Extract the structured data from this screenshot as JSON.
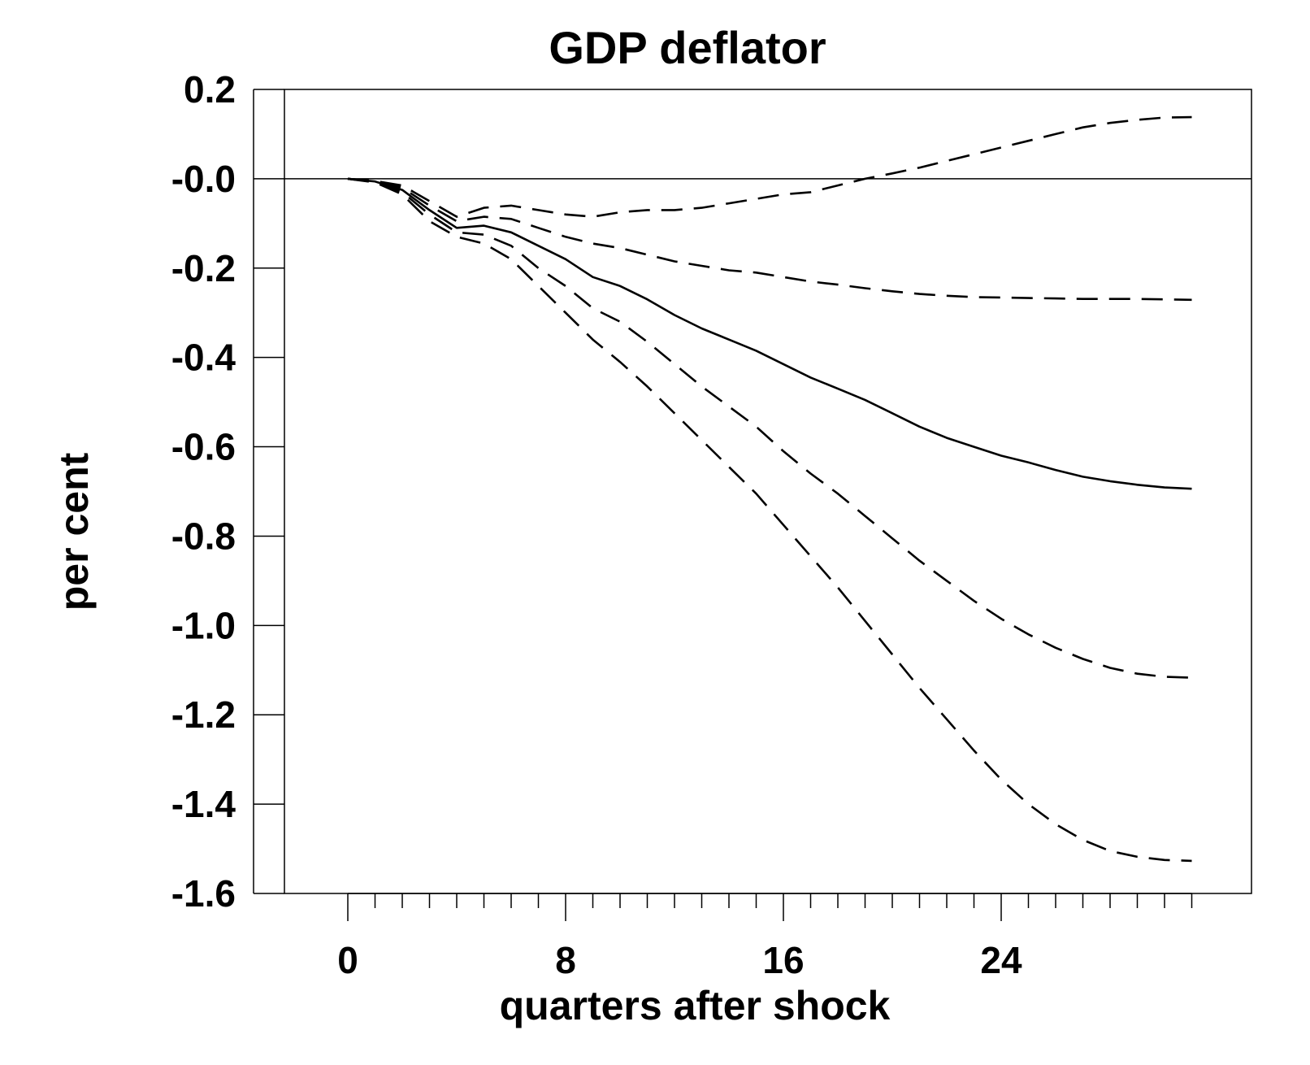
{
  "chart_data": {
    "type": "line",
    "title": "GDP deflator",
    "xlabel": "quarters after shock",
    "ylabel": "per cent",
    "xlim": [
      -3.5,
      32
    ],
    "ylim": [
      -1.6,
      0.2
    ],
    "x_ticks": [
      0,
      8,
      16,
      24
    ],
    "x_tick_labels": [
      "0",
      "8",
      "16",
      "24"
    ],
    "x_minor_ticks": [
      0,
      1,
      2,
      3,
      4,
      5,
      6,
      7,
      8,
      9,
      10,
      11,
      12,
      13,
      14,
      15,
      16,
      17,
      18,
      19,
      20,
      21,
      22,
      23,
      24,
      25,
      26,
      27,
      28,
      29,
      30,
      31
    ],
    "y_ticks": [
      0.2,
      0.0,
      -0.2,
      -0.4,
      -0.6,
      -0.8,
      -1.0,
      -1.2,
      -1.4,
      -1.6
    ],
    "y_tick_labels": [
      "0.2",
      "-0.0",
      "-0.2",
      "-0.4",
      "-0.6",
      "-0.8",
      "-1.0",
      "-1.2",
      "-1.4",
      "-1.6"
    ],
    "zero_line": true,
    "grid": false,
    "legend": "none",
    "x": [
      0,
      1,
      2,
      3,
      4,
      5,
      6,
      7,
      8,
      9,
      10,
      11,
      12,
      13,
      14,
      15,
      16,
      17,
      18,
      19,
      20,
      21,
      22,
      23,
      24,
      25,
      26,
      27,
      28,
      29,
      30,
      31
    ],
    "series": [
      {
        "style": "dashed",
        "values": [
          0.0,
          -0.005,
          -0.015,
          -0.05,
          -0.085,
          -0.065,
          -0.06,
          -0.07,
          -0.08,
          -0.085,
          -0.075,
          -0.07,
          -0.07,
          -0.065,
          -0.055,
          -0.045,
          -0.035,
          -0.03,
          -0.015,
          0.0,
          0.012,
          0.025,
          0.04,
          0.055,
          0.07,
          0.085,
          0.1,
          0.115,
          0.125,
          0.132,
          0.137,
          0.138
        ]
      },
      {
        "style": "dashed",
        "values": [
          0.0,
          -0.005,
          -0.02,
          -0.06,
          -0.095,
          -0.085,
          -0.09,
          -0.11,
          -0.13,
          -0.145,
          -0.155,
          -0.17,
          -0.185,
          -0.195,
          -0.205,
          -0.21,
          -0.22,
          -0.23,
          -0.237,
          -0.245,
          -0.252,
          -0.258,
          -0.262,
          -0.265,
          -0.266,
          -0.267,
          -0.268,
          -0.269,
          -0.269,
          -0.269,
          -0.27,
          -0.271
        ]
      },
      {
        "style": "solid",
        "values": [
          0.0,
          -0.006,
          -0.025,
          -0.07,
          -0.11,
          -0.105,
          -0.12,
          -0.15,
          -0.18,
          -0.22,
          -0.24,
          -0.27,
          -0.305,
          -0.335,
          -0.36,
          -0.385,
          -0.415,
          -0.445,
          -0.47,
          -0.495,
          -0.525,
          -0.555,
          -0.58,
          -0.6,
          -0.62,
          -0.635,
          -0.652,
          -0.667,
          -0.677,
          -0.685,
          -0.691,
          -0.694
        ]
      },
      {
        "style": "dashed",
        "values": [
          0.0,
          -0.007,
          -0.03,
          -0.08,
          -0.12,
          -0.125,
          -0.15,
          -0.2,
          -0.24,
          -0.29,
          -0.32,
          -0.365,
          -0.415,
          -0.465,
          -0.51,
          -0.555,
          -0.61,
          -0.66,
          -0.705,
          -0.755,
          -0.805,
          -0.855,
          -0.9,
          -0.945,
          -0.985,
          -1.02,
          -1.05,
          -1.075,
          -1.095,
          -1.108,
          -1.115,
          -1.117
        ]
      },
      {
        "style": "dashed",
        "values": [
          0.0,
          -0.008,
          -0.035,
          -0.095,
          -0.13,
          -0.145,
          -0.18,
          -0.24,
          -0.3,
          -0.36,
          -0.41,
          -0.465,
          -0.525,
          -0.585,
          -0.645,
          -0.705,
          -0.775,
          -0.845,
          -0.915,
          -0.99,
          -1.065,
          -1.14,
          -1.21,
          -1.28,
          -1.345,
          -1.4,
          -1.445,
          -1.48,
          -1.505,
          -1.518,
          -1.525,
          -1.527
        ]
      }
    ]
  }
}
